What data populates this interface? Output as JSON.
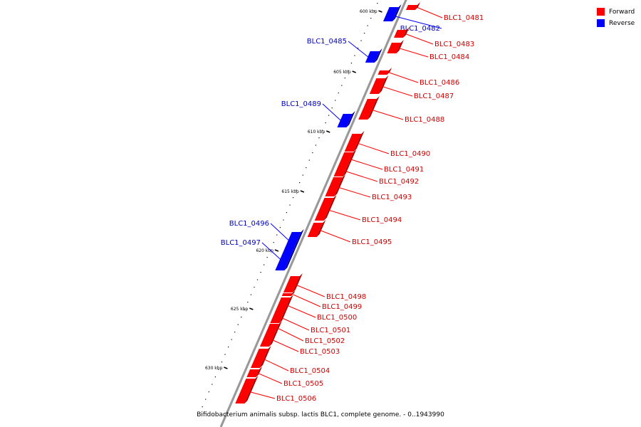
{
  "colors": {
    "forward": "#ff0000",
    "reverse": "#0000ff",
    "backbone": "#999999"
  },
  "legend": [
    {
      "label": "Forward",
      "color": "#ff0000"
    },
    {
      "label": "Reverse",
      "color": "#0000ff"
    }
  ],
  "caption": "Bifidobacterium animalis subsp. lactis BLC1, complete genome. - 0..1943990",
  "ruler": [
    "600 kbp",
    "605 kbp",
    "610 kbp",
    "615 kbp",
    "620 kbp",
    "625 kbp",
    "630 kbp"
  ],
  "genes": [
    {
      "id": "BLC1_0481",
      "strand": "forward"
    },
    {
      "id": "BLC1_0482",
      "strand": "reverse"
    },
    {
      "id": "BLC1_0483",
      "strand": "forward"
    },
    {
      "id": "BLC1_0484",
      "strand": "forward"
    },
    {
      "id": "BLC1_0485",
      "strand": "reverse"
    },
    {
      "id": "BLC1_0486",
      "strand": "forward"
    },
    {
      "id": "BLC1_0487",
      "strand": "forward"
    },
    {
      "id": "BLC1_0488",
      "strand": "forward"
    },
    {
      "id": "BLC1_0489",
      "strand": "reverse"
    },
    {
      "id": "BLC1_0490",
      "strand": "forward"
    },
    {
      "id": "BLC1_0491",
      "strand": "forward"
    },
    {
      "id": "BLC1_0492",
      "strand": "forward"
    },
    {
      "id": "BLC1_0493",
      "strand": "forward"
    },
    {
      "id": "BLC1_0494",
      "strand": "forward"
    },
    {
      "id": "BLC1_0495",
      "strand": "forward"
    },
    {
      "id": "BLC1_0496",
      "strand": "reverse"
    },
    {
      "id": "BLC1_0497",
      "strand": "reverse"
    },
    {
      "id": "BLC1_0498",
      "strand": "forward"
    },
    {
      "id": "BLC1_0499",
      "strand": "forward"
    },
    {
      "id": "BLC1_0500",
      "strand": "forward"
    },
    {
      "id": "BLC1_0501",
      "strand": "forward"
    },
    {
      "id": "BLC1_0502",
      "strand": "forward"
    },
    {
      "id": "BLC1_0503",
      "strand": "forward"
    },
    {
      "id": "BLC1_0504",
      "strand": "forward"
    },
    {
      "id": "BLC1_0505",
      "strand": "forward"
    },
    {
      "id": "BLC1_0506",
      "strand": "forward"
    }
  ]
}
